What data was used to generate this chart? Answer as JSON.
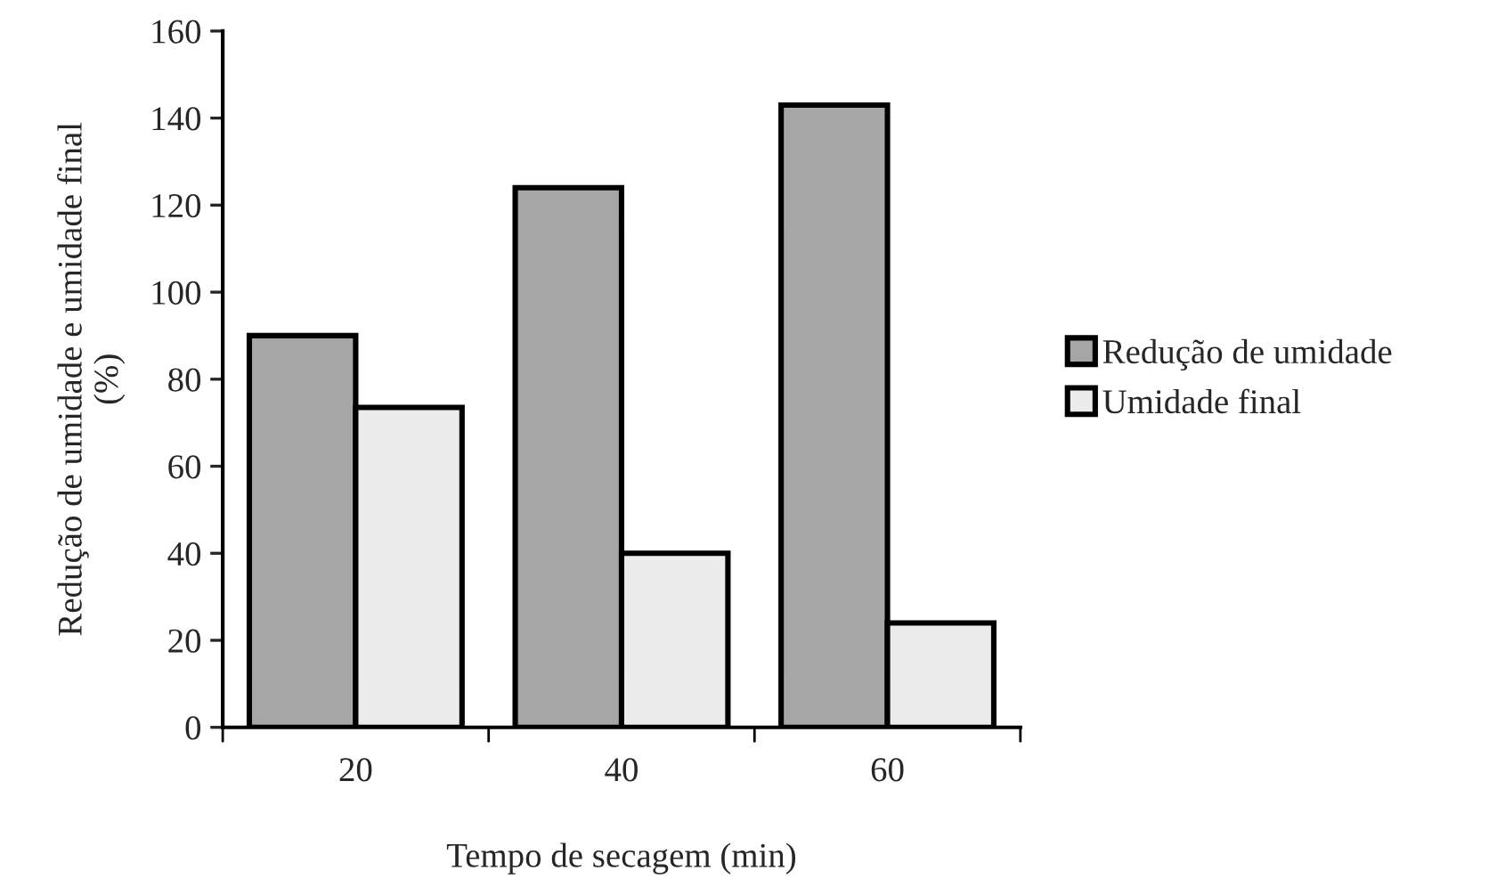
{
  "chart_data": {
    "type": "bar",
    "xlabel": "Tempo de secagem (min)",
    "ylabel": "Redução de umidade e umidade final\n(%)",
    "categories": [
      "20",
      "40",
      "60"
    ],
    "series": [
      {
        "name": "Redução de umidade",
        "color": "#a6a6a6",
        "values": [
          90,
          124,
          143
        ]
      },
      {
        "name": "Umidade final",
        "color": "#ececec",
        "values": [
          73.5,
          40,
          24
        ]
      }
    ],
    "ylim": [
      0,
      160
    ],
    "yticks": [
      0,
      20,
      40,
      60,
      80,
      100,
      120,
      140,
      160
    ],
    "grid": false,
    "legend": "right"
  }
}
